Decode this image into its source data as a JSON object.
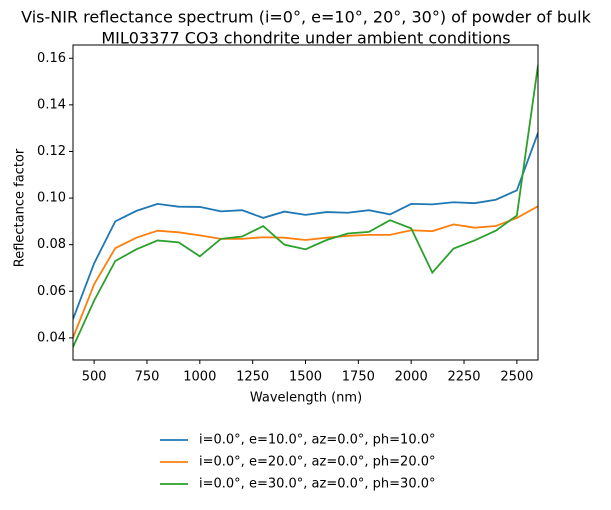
{
  "chart_data": {
    "type": "line",
    "title": [
      "Vis-NIR reflectance spectrum (i=0°, e=10°, 20°, 30°) of powder of bulk",
      "MIL03377 CO3 chondrite under ambient conditions"
    ],
    "x_label": "Wavelength (nm)",
    "y_label": "Reflectance factor",
    "x": [
      400,
      500,
      600,
      700,
      800,
      900,
      1000,
      1100,
      1200,
      1300,
      1400,
      1500,
      1600,
      1700,
      1800,
      1900,
      2000,
      2100,
      2200,
      2300,
      2400,
      2500,
      2600
    ],
    "series": [
      {
        "name": "i=0.0°, e=10.0°, az=0.0°, ph=10.0°",
        "color": "#1f77b4",
        "values": [
          0.048,
          0.072,
          0.09,
          0.0945,
          0.0975,
          0.0963,
          0.0962,
          0.0943,
          0.0948,
          0.0915,
          0.0942,
          0.0928,
          0.094,
          0.0937,
          0.0948,
          0.093,
          0.0975,
          0.0973,
          0.0982,
          0.0978,
          0.0993,
          0.1033,
          0.128
        ]
      },
      {
        "name": "i=0.0°, e=20.0°, az=0.0°, ph=20.0°",
        "color": "#ff7f0e",
        "values": [
          0.04,
          0.063,
          0.0785,
          0.083,
          0.086,
          0.0853,
          0.084,
          0.0825,
          0.0825,
          0.0832,
          0.083,
          0.082,
          0.083,
          0.0838,
          0.0842,
          0.0842,
          0.0862,
          0.0858,
          0.0887,
          0.0873,
          0.088,
          0.0915,
          0.0965
        ]
      },
      {
        "name": "i=0.0°, e=30.0°, az=0.0°, ph=30.0°",
        "color": "#2ca02c",
        "values": [
          0.036,
          0.056,
          0.073,
          0.078,
          0.0818,
          0.081,
          0.075,
          0.0825,
          0.0835,
          0.088,
          0.08,
          0.078,
          0.082,
          0.0848,
          0.0855,
          0.0905,
          0.087,
          0.068,
          0.0783,
          0.0818,
          0.086,
          0.0925,
          0.157
        ]
      }
    ],
    "xlim": [
      400,
      2600
    ],
    "ylim": [
      0.0305,
      0.1657
    ],
    "xticks": [
      500,
      750,
      1000,
      1250,
      1500,
      1750,
      2000,
      2250,
      2500
    ],
    "yticks": [
      0.04,
      0.06,
      0.08,
      {
        "value": 0.1,
        "label": "0.10"
      },
      0.12,
      0.14,
      0.16
    ],
    "legend": "bottom"
  }
}
